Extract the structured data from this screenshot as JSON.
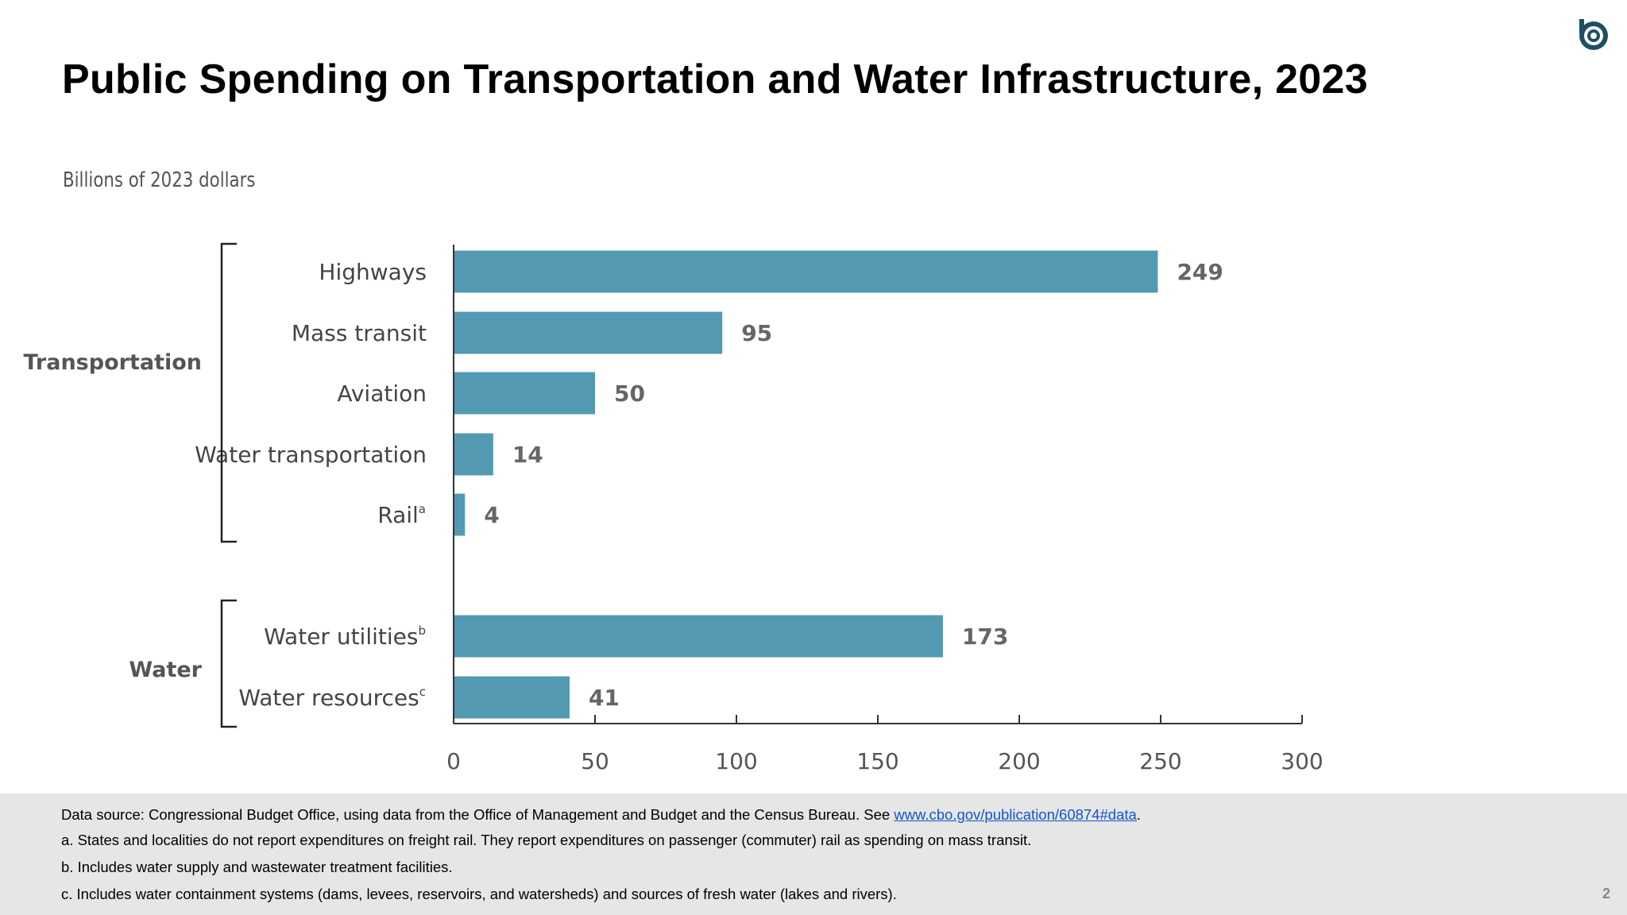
{
  "title": "Public Spending on Transportation and Water Infrastructure, 2023",
  "subtitle": "Billions of 2023 dollars",
  "logo_icon": "cbo-logo-icon",
  "colors": {
    "bar": "#5399b2",
    "axis": "#333333",
    "text": "#555555",
    "logo": "#1d4f63"
  },
  "chart_data": {
    "type": "bar",
    "orientation": "horizontal",
    "groups": [
      {
        "name": "Transportation",
        "categories": [
          {
            "label": "Highways",
            "sup": "",
            "value": 249
          },
          {
            "label": "Mass transit",
            "sup": "",
            "value": 95
          },
          {
            "label": "Aviation",
            "sup": "",
            "value": 50
          },
          {
            "label": "Water transportation",
            "sup": "",
            "value": 14
          },
          {
            "label": "Rail",
            "sup": "a",
            "value": 4
          }
        ]
      },
      {
        "name": "Water",
        "categories": [
          {
            "label": "Water utilities",
            "sup": "b",
            "value": 173
          },
          {
            "label": "Water resources",
            "sup": "c",
            "value": 41
          }
        ]
      }
    ],
    "xlim": [
      0,
      300
    ],
    "xticks": [
      0,
      50,
      100,
      150,
      200,
      250,
      300
    ],
    "ylabel": "Billions of 2023 dollars",
    "grid": false,
    "legend": "none"
  },
  "footer": {
    "source_text": "Data source: Congressional Budget Office, using data from the Office of Management and Budget and the Census Bureau. See ",
    "source_link": "www.cbo.gov/publication/60874#data",
    "source_end": ".",
    "note_a": "a. States and localities do not report expenditures on freight rail. They report expenditures on passenger (commuter) rail as spending on mass transit.",
    "note_b": "b. Includes water supply and wastewater treatment facilities.",
    "note_c": "c. Includes water containment systems (dams, levees, reservoirs, and watersheds) and sources of fresh water (lakes and rivers)."
  },
  "page_number": "2"
}
